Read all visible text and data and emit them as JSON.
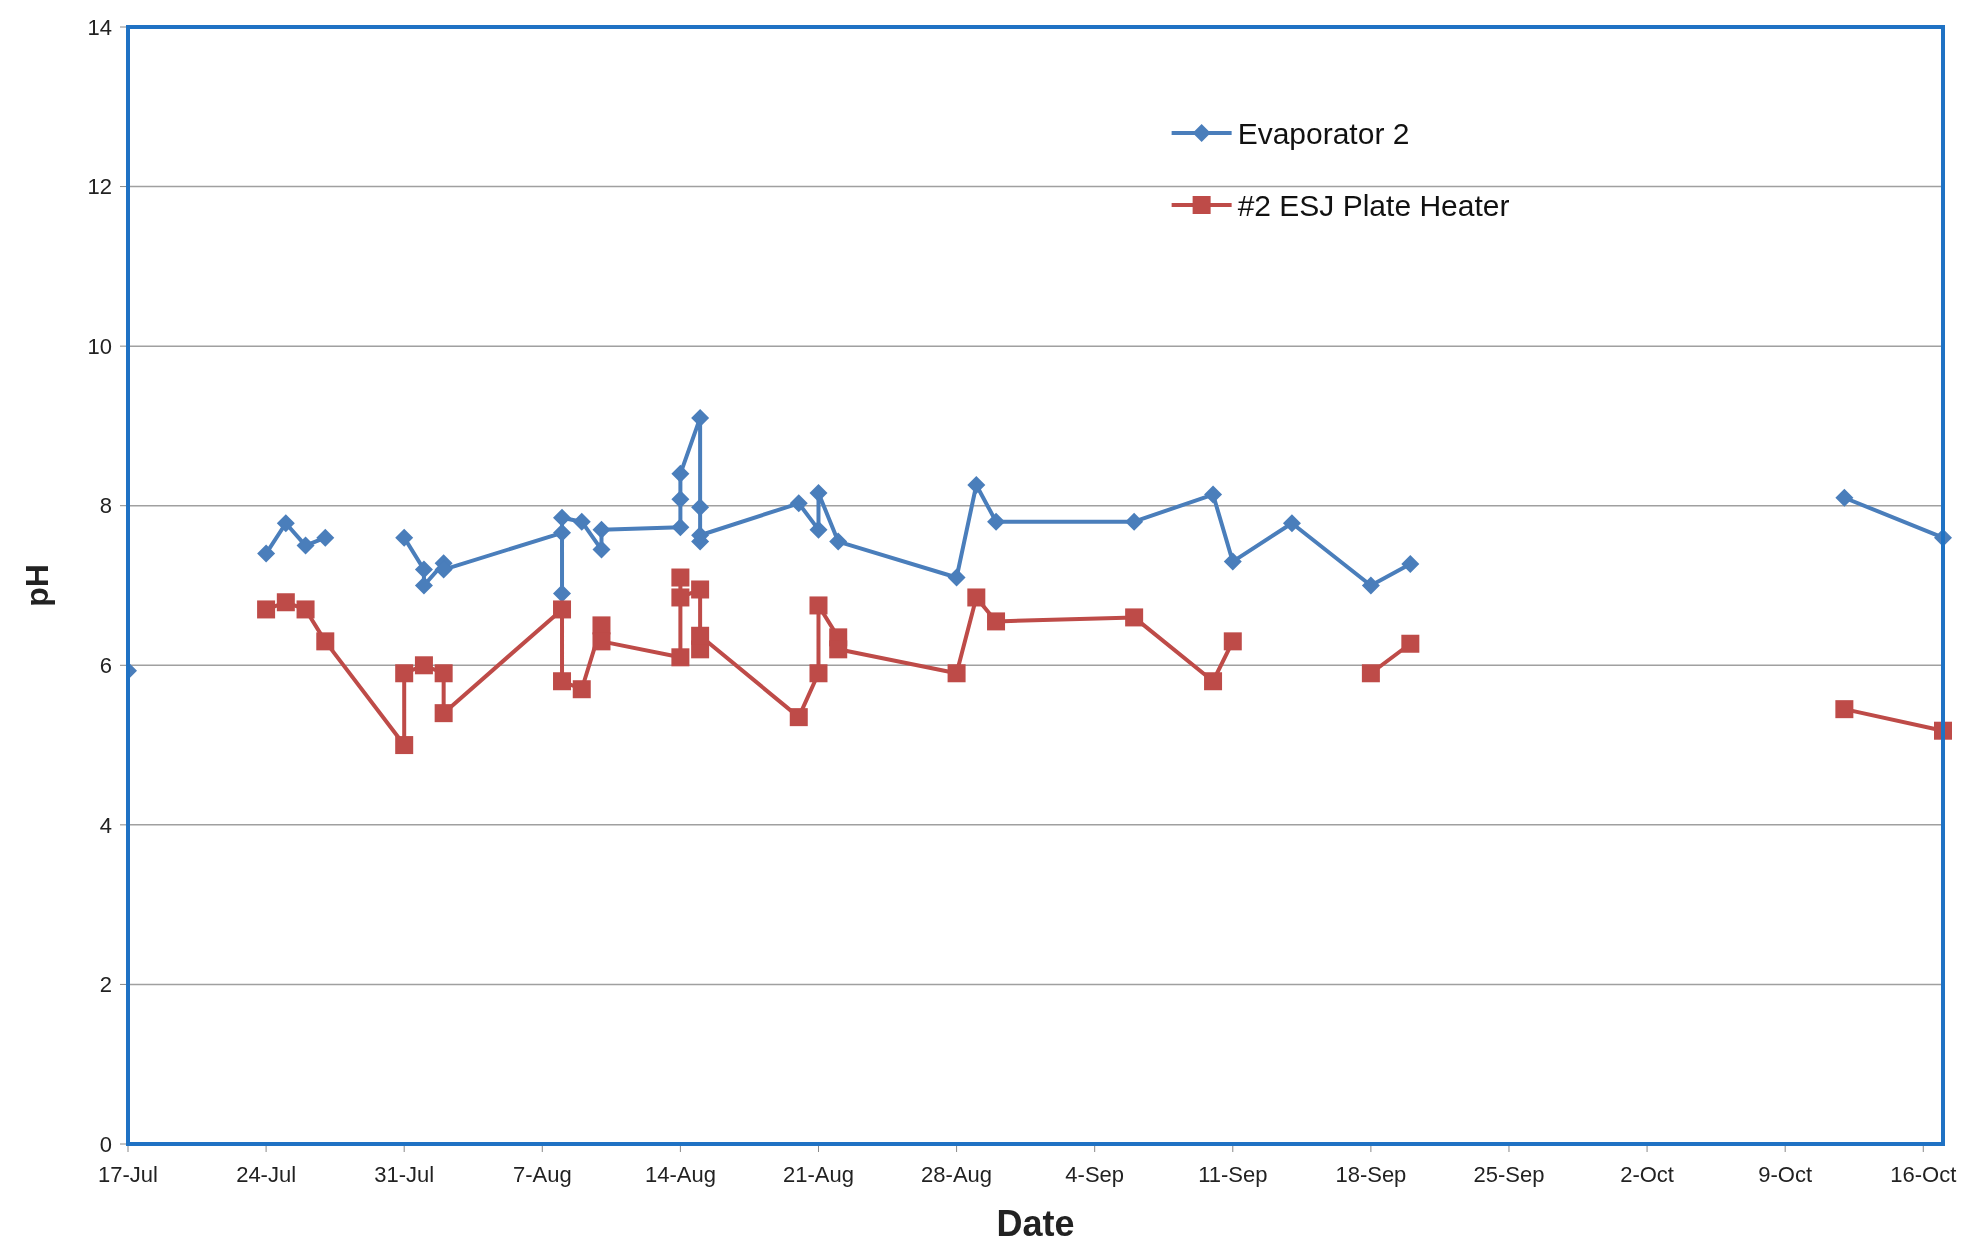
{
  "chart_data": {
    "type": "line",
    "xlabel": "Date",
    "ylabel": "pH",
    "ylim": [
      0,
      14
    ],
    "yticks": [
      0,
      2,
      4,
      6,
      8,
      10,
      12,
      14
    ],
    "xlim": [
      "--07-17",
      "--10-17"
    ],
    "xticks": [
      {
        "value": "--07-17",
        "label": "17-Jul"
      },
      {
        "value": "--07-24",
        "label": "24-Jul"
      },
      {
        "value": "--07-31",
        "label": "31-Jul"
      },
      {
        "value": "--08-07",
        "label": "7-Aug"
      },
      {
        "value": "--08-14",
        "label": "14-Aug"
      },
      {
        "value": "--08-21",
        "label": "21-Aug"
      },
      {
        "value": "--08-28",
        "label": "28-Aug"
      },
      {
        "value": "--09-04",
        "label": "4-Sep"
      },
      {
        "value": "--09-11",
        "label": "11-Sep"
      },
      {
        "value": "--09-18",
        "label": "18-Sep"
      },
      {
        "value": "--09-25",
        "label": "25-Sep"
      },
      {
        "value": "--10-02",
        "label": "2-Oct"
      },
      {
        "value": "--10-09",
        "label": "9-Oct"
      },
      {
        "value": "--10-16",
        "label": "16-Oct"
      }
    ],
    "grid": "y",
    "legend": "top right",
    "line_style": "solid",
    "series": [
      {
        "name": "Evaporator 2",
        "color": "#4a7ebb",
        "marker": "diamond",
        "x": [
          "--07-17",
          "--07-20",
          "--07-24",
          "--07-25",
          "--07-26",
          "--07-27",
          "--07-29",
          "--07-31",
          "--08-01",
          "--08-01",
          "--08-02",
          "--08-02",
          "--08-08",
          "--08-08",
          "--08-08",
          "--08-09",
          "--08-10",
          "--08-10",
          "--08-14",
          "--08-14",
          "--08-14",
          "--08-15",
          "--08-15",
          "--08-15",
          "--08-15",
          "--08-20",
          "--08-21",
          "--08-21",
          "--08-22",
          "--08-28",
          "--08-29",
          "--08-30",
          "--09-06",
          "--09-10",
          "--09-11",
          "--09-14",
          "--09-18",
          "--09-20",
          "--10-01",
          "--10-12",
          "--10-17"
        ],
        "values": [
          5.93,
          null,
          7.4,
          7.78,
          7.5,
          7.6,
          null,
          7.6,
          7.2,
          7.0,
          7.28,
          7.2,
          7.66,
          6.9,
          7.85,
          7.8,
          7.45,
          7.7,
          7.73,
          8.08,
          8.4,
          9.1,
          7.98,
          7.55,
          7.63,
          8.03,
          7.7,
          8.16,
          7.55,
          7.1,
          8.26,
          7.8,
          7.8,
          8.14,
          7.3,
          7.78,
          7.0,
          7.27,
          null,
          8.1,
          7.6
        ]
      },
      {
        "name": "#2 ESJ Plate Heater",
        "color": "#be4b48",
        "marker": "square",
        "x": [
          "--07-24",
          "--07-25",
          "--07-26",
          "--07-27",
          "--07-31",
          "--07-31",
          "--08-01",
          "--08-02",
          "--08-02",
          "--08-08",
          "--08-08",
          "--08-09",
          "--08-10",
          "--08-10",
          "--08-14",
          "--08-14",
          "--08-14",
          "--08-15",
          "--08-15",
          "--08-15",
          "--08-20",
          "--08-21",
          "--08-21",
          "--08-22",
          "--08-22",
          "--08-28",
          "--08-29",
          "--08-30",
          "--09-06",
          "--09-10",
          "--09-11",
          "--09-14",
          "--09-18",
          "--09-20",
          "--10-01",
          "--10-12",
          "--10-17"
        ],
        "values": [
          6.7,
          6.79,
          6.7,
          6.3,
          5.0,
          5.9,
          6.0,
          5.9,
          5.4,
          6.7,
          5.8,
          5.7,
          6.5,
          6.3,
          6.1,
          7.1,
          6.85,
          6.95,
          6.2,
          6.37,
          5.35,
          5.9,
          6.75,
          6.35,
          6.2,
          5.9,
          6.85,
          6.55,
          6.6,
          5.8,
          6.3,
          null,
          5.9,
          6.27,
          null,
          5.45,
          5.18
        ]
      }
    ]
  }
}
